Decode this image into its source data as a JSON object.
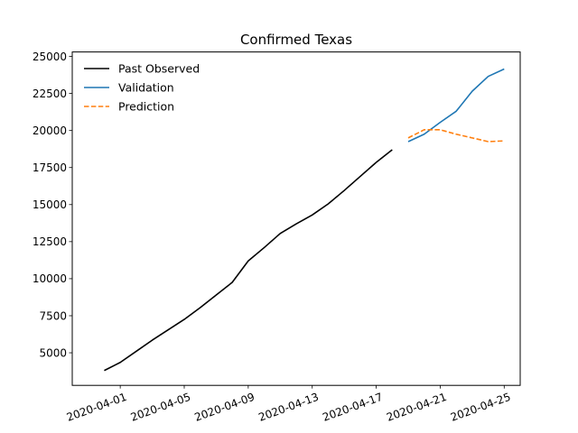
{
  "chart_data": {
    "type": "line",
    "title": "Confirmed Texas",
    "xlabel": "",
    "ylabel": "",
    "x_axis": {
      "type": "date",
      "range": [
        "2020-03-29",
        "2020-04-26"
      ],
      "tick_labels": [
        "2020-04-01",
        "2020-04-05",
        "2020-04-09",
        "2020-04-13",
        "2020-04-17",
        "2020-04-21",
        "2020-04-25"
      ]
    },
    "y_axis": {
      "range": [
        2800,
        25300
      ],
      "tick_labels": [
        5000,
        7500,
        10000,
        12500,
        15000,
        17500,
        20000,
        22500,
        25000
      ]
    },
    "grid": false,
    "legend_placement": "top-left",
    "series": [
      {
        "name": "Past Observed",
        "color": "#000000",
        "style": "solid",
        "points": [
          [
            "2020-03-31",
            3800
          ],
          [
            "2020-04-01",
            4350
          ],
          [
            "2020-04-02",
            5100
          ],
          [
            "2020-04-03",
            5850
          ],
          [
            "2020-04-04",
            6550
          ],
          [
            "2020-04-05",
            7250
          ],
          [
            "2020-04-06",
            8050
          ],
          [
            "2020-04-07",
            8900
          ],
          [
            "2020-04-08",
            9750
          ],
          [
            "2020-04-09",
            11200
          ],
          [
            "2020-04-10",
            12100
          ],
          [
            "2020-04-11",
            13050
          ],
          [
            "2020-04-12",
            13700
          ],
          [
            "2020-04-13",
            14300
          ],
          [
            "2020-04-14",
            15050
          ],
          [
            "2020-04-15",
            15950
          ],
          [
            "2020-04-16",
            16900
          ],
          [
            "2020-04-17",
            17850
          ],
          [
            "2020-04-18",
            18700
          ]
        ]
      },
      {
        "name": "Validation",
        "color": "#1f77b4",
        "style": "solid",
        "points": [
          [
            "2020-04-19",
            19250
          ],
          [
            "2020-04-20",
            19750
          ],
          [
            "2020-04-21",
            20550
          ],
          [
            "2020-04-22",
            21300
          ],
          [
            "2020-04-23",
            22650
          ],
          [
            "2020-04-24",
            23650
          ],
          [
            "2020-04-25",
            24150
          ]
        ]
      },
      {
        "name": "Prediction",
        "color": "#ff7f0e",
        "style": "dashed",
        "points": [
          [
            "2020-04-19",
            19500
          ],
          [
            "2020-04-20",
            20050
          ],
          [
            "2020-04-21",
            20050
          ],
          [
            "2020-04-22",
            19750
          ],
          [
            "2020-04-23",
            19500
          ],
          [
            "2020-04-24",
            19250
          ],
          [
            "2020-04-25",
            19300
          ]
        ]
      }
    ]
  }
}
